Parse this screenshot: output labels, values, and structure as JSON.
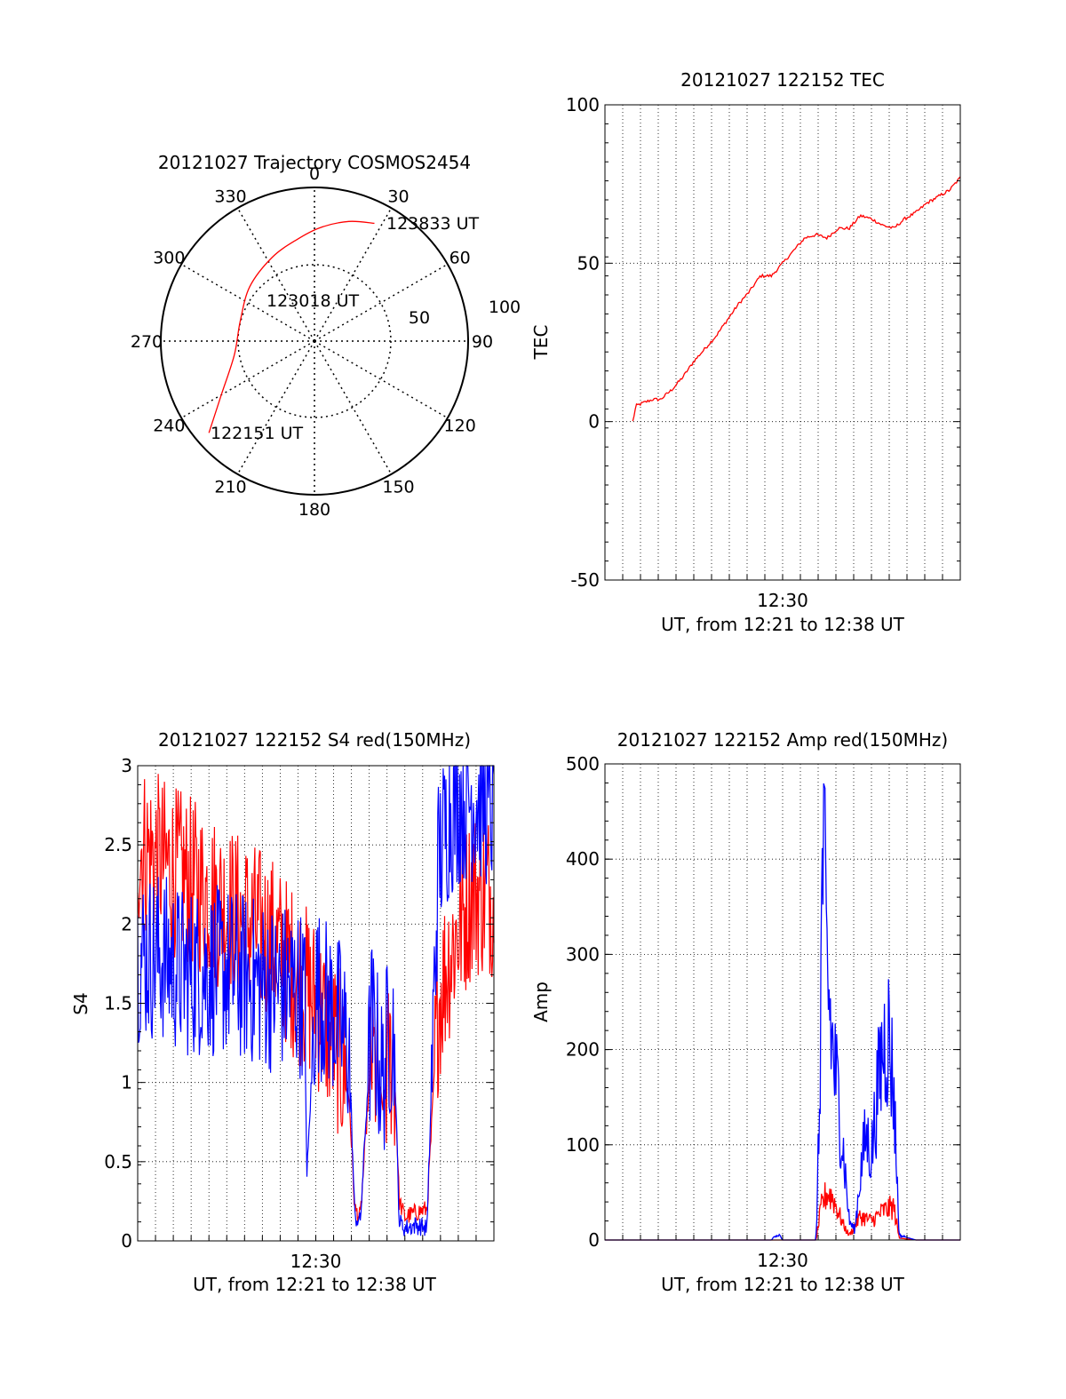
{
  "chart_data": [
    {
      "type": "polar-trajectory",
      "title": "20121027 Trajectory COSMOS2454",
      "azimuth_labels": [
        "0",
        "30",
        "60",
        "90",
        "120",
        "150",
        "180",
        "210",
        "240",
        "270",
        "300",
        "330"
      ],
      "elevation_labels": [
        "50",
        "100"
      ],
      "points": [
        {
          "az": 229,
          "r": 91,
          "label": "122151 UT"
        },
        {
          "az": 240,
          "r": 70
        },
        {
          "az": 260,
          "r": 53
        },
        {
          "az": 285,
          "r": 50
        },
        {
          "az": 310,
          "r": 55
        },
        {
          "az": 333,
          "r": 61,
          "label": "123018 UT"
        },
        {
          "az": 350,
          "r": 67
        },
        {
          "az": 3,
          "r": 74
        },
        {
          "az": 16,
          "r": 81
        },
        {
          "az": 27,
          "r": 86,
          "label": "123833 UT"
        }
      ],
      "colors": {
        "track": "#ff0000"
      }
    },
    {
      "type": "line",
      "title": "20121027 122152 TEC",
      "xlabel": "UT, from 12:21 to 12:38 UT",
      "ylabel": "TEC",
      "xlim": [
        12.34,
        12.66
      ],
      "ylim": [
        -50,
        100
      ],
      "xticks": [
        {
          "v": 12.5,
          "label": "12:30"
        }
      ],
      "yticks": [
        "-50",
        "0",
        "50",
        "100"
      ],
      "series": [
        {
          "color": "#ff0000",
          "x": [
            12.365,
            12.368,
            12.375,
            12.383,
            12.39,
            12.4,
            12.41,
            12.42,
            12.43,
            12.44,
            12.45,
            12.46,
            12.47,
            12.48,
            12.49,
            12.5,
            12.51,
            12.52,
            12.53,
            12.54,
            12.55,
            12.56,
            12.57,
            12.58,
            12.59,
            12.6,
            12.61,
            12.62,
            12.63,
            12.64,
            12.65,
            12.66
          ],
          "values": [
            0,
            5,
            6,
            7,
            7,
            10,
            14,
            19,
            23,
            27,
            32,
            37,
            41,
            46,
            46,
            50,
            54,
            58,
            59,
            58,
            61,
            61,
            65,
            64,
            62,
            61,
            64,
            66,
            69,
            71,
            73,
            77
          ]
        }
      ]
    },
    {
      "type": "line",
      "title": "20121027 122152 S4 red(150MHz)",
      "xlabel": "UT, from 12:21 to 12:38 UT",
      "ylabel": "S4",
      "xlim": [
        12.34,
        12.66
      ],
      "ylim": [
        0,
        3
      ],
      "xticks": [
        {
          "v": 12.5,
          "label": "12:30"
        }
      ],
      "yticks": [
        "0",
        "0.5",
        "1",
        "1.5",
        "2",
        "2.5",
        "3"
      ],
      "series": [
        {
          "color": "#ff0000",
          "x": [
            12.34,
            12.36,
            12.38,
            12.4,
            12.42,
            12.44,
            12.46,
            12.48,
            12.5,
            12.51,
            12.52,
            12.53,
            12.535,
            12.54,
            12.55,
            12.56,
            12.565,
            12.57,
            12.575,
            12.58,
            12.59,
            12.6,
            12.61,
            12.62,
            12.63,
            12.64,
            12.65,
            12.66
          ],
          "values": [
            2.5,
            2.4,
            2.3,
            2.2,
            2.1,
            2.0,
            1.9,
            1.7,
            1.5,
            1.35,
            1.2,
            0.9,
            0.2,
            0.15,
            1.2,
            0.85,
            1.1,
            1.2,
            0.25,
            0.15,
            0.18,
            0.2,
            1.5,
            1.8,
            2.0,
            2.2,
            2.2,
            2.2
          ]
        },
        {
          "color": "#0000ff",
          "x": [
            12.34,
            12.36,
            12.38,
            12.4,
            12.42,
            12.44,
            12.46,
            12.48,
            12.49,
            12.492,
            12.5,
            12.51,
            12.52,
            12.53,
            12.535,
            12.54,
            12.55,
            12.56,
            12.565,
            12.57,
            12.575,
            12.58,
            12.59,
            12.6,
            12.61,
            12.62,
            12.63,
            12.64,
            12.65,
            12.66
          ],
          "values": [
            1.8,
            1.8,
            1.7,
            1.7,
            1.7,
            1.65,
            1.6,
            1.6,
            1.55,
            0.4,
            1.6,
            1.5,
            1.4,
            1.2,
            0.15,
            0.12,
            1.4,
            1.0,
            1.3,
            1.3,
            0.12,
            0.08,
            0.1,
            0.08,
            2.4,
            2.7,
            2.8,
            2.8,
            2.8,
            2.7
          ]
        }
      ]
    },
    {
      "type": "line",
      "title": "20121027 122152 Amp red(150MHz)",
      "xlabel": "UT, from 12:21 to 12:38 UT",
      "ylabel": "Amp",
      "xlim": [
        12.34,
        12.66
      ],
      "ylim": [
        0,
        500
      ],
      "xticks": [
        {
          "v": 12.5,
          "label": "12:30"
        }
      ],
      "yticks": [
        "0",
        "100",
        "200",
        "300",
        "400",
        "500"
      ],
      "series": [
        {
          "color": "#ff0000",
          "x": [
            12.34,
            12.51,
            12.53,
            12.535,
            12.54,
            12.545,
            12.55,
            12.555,
            12.56,
            12.57,
            12.58,
            12.59,
            12.6,
            12.605,
            12.62,
            12.66
          ],
          "values": [
            0,
            0,
            0,
            35,
            50,
            45,
            30,
            15,
            5,
            25,
            20,
            30,
            35,
            2,
            0,
            0
          ]
        },
        {
          "color": "#0000ff",
          "x": [
            12.34,
            12.49,
            12.493,
            12.497,
            12.5,
            12.53,
            12.533,
            12.536,
            12.54,
            12.545,
            12.55,
            12.555,
            12.56,
            12.565,
            12.57,
            12.575,
            12.58,
            12.585,
            12.59,
            12.595,
            12.6,
            12.605,
            12.62,
            12.66
          ],
          "values": [
            0,
            0,
            5,
            5,
            0,
            0,
            120,
            410,
            280,
            200,
            150,
            90,
            20,
            10,
            70,
            110,
            90,
            150,
            200,
            220,
            160,
            5,
            0,
            0
          ]
        }
      ]
    }
  ]
}
